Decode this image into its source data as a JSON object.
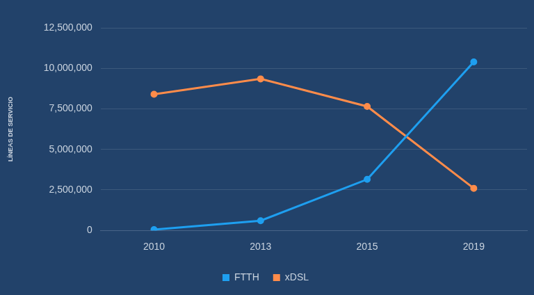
{
  "chart_data": {
    "type": "line",
    "y_label": "LÍNEAS DE SERVICIO",
    "categories": [
      "2010",
      "2013",
      "2015",
      "2019"
    ],
    "series": [
      {
        "name": "FTTH",
        "color": "#1e9ff0",
        "values": [
          50000,
          600000,
          3150000,
          10400000
        ]
      },
      {
        "name": "xDSL",
        "color": "#ff8c4a",
        "values": [
          8400000,
          9350000,
          7650000,
          2600000
        ]
      }
    ],
    "ylim": [
      0,
      12500000
    ],
    "yticks": [
      0,
      {
        "value": 2500000,
        "label": "2,500,000"
      },
      {
        "value": 5000000,
        "label": "5,000,000"
      },
      {
        "value": 7500000,
        "label": "7,500,000"
      },
      {
        "value": 10000000,
        "label": "10,000,000"
      },
      {
        "value": 12500000,
        "label": "12,500,000"
      }
    ],
    "grid": true,
    "legend": "bottom",
    "marker": "circle"
  }
}
